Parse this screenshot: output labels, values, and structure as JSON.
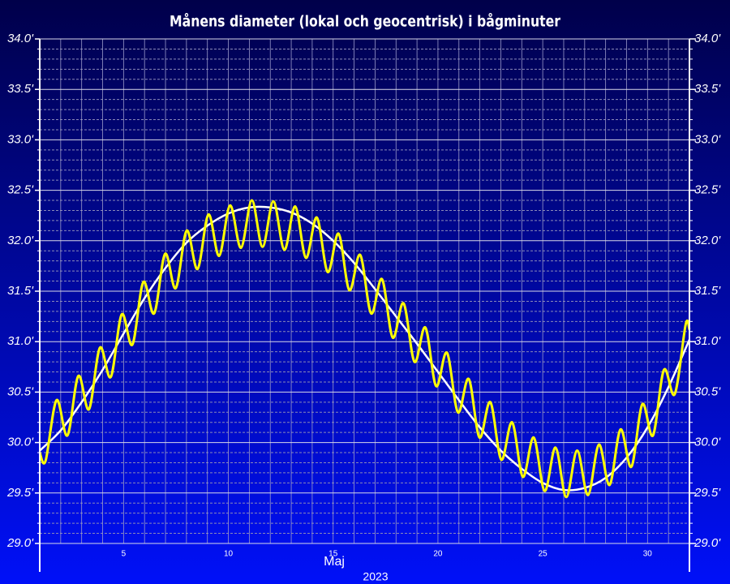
{
  "chart_data": {
    "type": "line",
    "title": "Månens diameter (lokal och geocentrisk) i bågminuter",
    "xlabel": "Maj",
    "xlabel_year": "2023",
    "xlim": [
      1,
      32
    ],
    "xticks": [
      5,
      10,
      15,
      20,
      25,
      30
    ],
    "xminorticks": [
      2,
      3,
      4,
      6,
      7,
      8,
      9,
      11,
      12,
      13,
      14,
      16,
      17,
      18,
      19,
      21,
      22,
      23,
      24,
      26,
      27,
      28,
      29,
      31
    ],
    "ylim": [
      29,
      34
    ],
    "yticks": [
      {
        "value": 29,
        "label": "29.0'"
      },
      {
        "value": 29.5,
        "label": "29.5'"
      },
      {
        "value": 30,
        "label": "30.0'"
      },
      {
        "value": 30.5,
        "label": "30.5'"
      },
      {
        "value": 31,
        "label": "31.0'"
      },
      {
        "value": 31.5,
        "label": "31.5'"
      },
      {
        "value": 32,
        "label": "32.0'"
      },
      {
        "value": 32.5,
        "label": "32.5'"
      },
      {
        "value": 33,
        "label": "33.0'"
      },
      {
        "value": 33.5,
        "label": "33.5'"
      },
      {
        "value": 34,
        "label": "34.0'"
      }
    ],
    "yminorticks": [
      29.1,
      29.2,
      29.3,
      29.4,
      29.6,
      29.7,
      29.8,
      29.9,
      30.1,
      30.2,
      30.3,
      30.4,
      30.6,
      30.7,
      30.8,
      30.9,
      31.1,
      31.2,
      31.3,
      31.4,
      31.6,
      31.7,
      31.8,
      31.9,
      32.1,
      32.2,
      32.3,
      32.4,
      32.6,
      32.7,
      32.8,
      32.9,
      33.1,
      33.2,
      33.3,
      33.4,
      33.6,
      33.7,
      33.8,
      33.9
    ],
    "grid": true,
    "series": [
      {
        "color": "#ffffff",
        "x": [
          1,
          2,
          3,
          4,
          5,
          6,
          7,
          8,
          9,
          10,
          11,
          12,
          13,
          14,
          15,
          16,
          17,
          18,
          19,
          20,
          21,
          22,
          23,
          24,
          25,
          26,
          27,
          28,
          29,
          30,
          31,
          32
        ],
        "values": [
          29.92,
          30.12,
          30.4,
          30.72,
          31.08,
          31.43,
          31.73,
          31.98,
          32.15,
          32.27,
          32.33,
          32.33,
          32.28,
          32.17,
          32.0,
          31.78,
          31.52,
          31.25,
          30.98,
          30.7,
          30.42,
          30.15,
          29.92,
          29.74,
          29.6,
          29.53,
          29.55,
          29.65,
          29.85,
          30.15,
          30.55,
          31.02
        ]
      },
      {
        "color": "#ffff00",
        "x": [
          1.0,
          1.28,
          1.8,
          2.32,
          2.84,
          3.35,
          3.87,
          4.39,
          4.91,
          5.42,
          5.94,
          6.46,
          6.98,
          7.49,
          8.01,
          8.53,
          9.05,
          9.56,
          10.08,
          10.6,
          11.12,
          11.63,
          12.15,
          12.67,
          13.19,
          13.7,
          14.22,
          14.74,
          15.26,
          15.77,
          16.29,
          16.81,
          17.33,
          17.84,
          18.36,
          18.88,
          19.4,
          19.91,
          20.43,
          20.95,
          21.47,
          21.98,
          22.5,
          23.02,
          23.54,
          24.05,
          24.57,
          25.09,
          25.61,
          26.12,
          26.64,
          27.16,
          27.68,
          28.19,
          28.71,
          29.23,
          29.75,
          30.26,
          30.78,
          31.3,
          31.82,
          32.0
        ],
        "values": [
          29.9,
          29.82,
          30.42,
          30.07,
          30.66,
          30.33,
          30.94,
          30.65,
          31.27,
          30.97,
          31.59,
          31.28,
          31.87,
          31.53,
          32.1,
          31.72,
          32.26,
          31.85,
          32.35,
          31.93,
          32.4,
          31.94,
          32.39,
          31.91,
          32.34,
          31.83,
          32.23,
          31.69,
          32.07,
          31.51,
          31.86,
          31.28,
          31.62,
          31.04,
          31.38,
          30.8,
          31.14,
          30.56,
          30.89,
          30.3,
          30.63,
          30.05,
          30.4,
          29.83,
          30.2,
          29.66,
          30.05,
          29.52,
          29.95,
          29.46,
          29.92,
          29.48,
          29.98,
          29.58,
          30.13,
          29.76,
          30.38,
          30.07,
          30.72,
          30.48,
          31.17,
          31.12
        ]
      }
    ]
  }
}
